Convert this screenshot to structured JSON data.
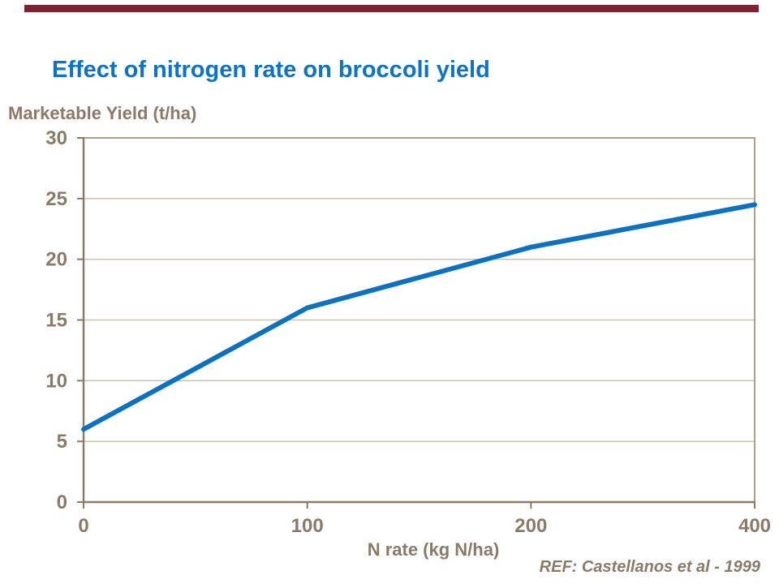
{
  "header": {
    "title": "Effect of nitrogen rate on broccoli yield"
  },
  "footer": {
    "ref": "REF: Castellanos et al - 1999"
  },
  "theme": {
    "accent_bar_color": "#7D2230",
    "title_color": "#0D74C5",
    "axis_text_color": "#8A7A68",
    "axis_line_color": "#8A7A68",
    "frame_line_color": "#AC9F8D",
    "gridline_color": "#C8BCA9",
    "line_color": "#0C72C0"
  },
  "chart_data": {
    "type": "line",
    "title": "Effect of nitrogen rate on broccoli yield",
    "xlabel": "N rate (kg N/ha)",
    "ylabel": "Marketable Yield (t/ha)",
    "x_axis_type": "category",
    "categories": [
      "0",
      "100",
      "200",
      "400"
    ],
    "series": [
      {
        "name": "Marketable yield (t/ha)",
        "values": [
          6,
          16,
          21,
          24.5
        ]
      }
    ],
    "ylim": [
      0,
      30
    ],
    "yticks": [
      30,
      25,
      20,
      15,
      10,
      5,
      0
    ],
    "grid": "horizontal",
    "legend": "none"
  }
}
